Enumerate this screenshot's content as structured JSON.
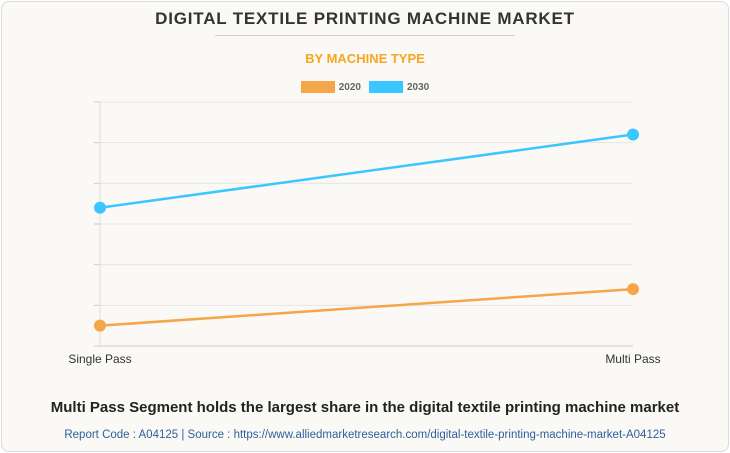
{
  "header": {
    "title": "DIGITAL TEXTILE PRINTING MACHINE MARKET",
    "subtitle": "BY MACHINE TYPE"
  },
  "footer": {
    "headline": "Multi Pass Segment holds the largest share in the digital textile printing machine market",
    "source": "Report Code : A04125  |  Source : https://www.alliedmarketresearch.com/digital-textile-printing-machine-market-A04125"
  },
  "chart_data": {
    "type": "line",
    "title": "DIGITAL TEXTILE PRINTING MACHINE MARKET",
    "subtitle": "BY MACHINE TYPE",
    "categories": [
      "Single Pass",
      "Multi Pass"
    ],
    "series": [
      {
        "name": "2020",
        "color": "#f5a54a",
        "values": [
          0.5,
          1.4
        ]
      },
      {
        "name": "2030",
        "color": "#3cc6ff",
        "values": [
          3.4,
          5.2
        ]
      }
    ],
    "ylim": [
      0,
      6
    ],
    "grid": true,
    "legend": "top-center",
    "y_ticks_visible": false
  }
}
